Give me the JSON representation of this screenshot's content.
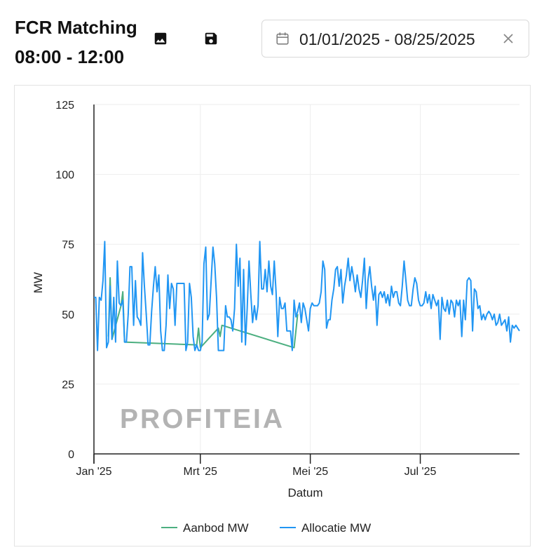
{
  "header": {
    "title_line1": "FCR Matching",
    "title_line2": "08:00 - 12:00",
    "image_icon": "image-icon",
    "save_icon": "save-icon"
  },
  "date_range": {
    "icon": "calendar-icon",
    "value": "01/01/2025 - 08/25/2025",
    "clear_icon": "close-icon"
  },
  "watermark": "PROFITEIA",
  "colors": {
    "aanbod": "#4caf80",
    "allocatie": "#2196f3",
    "grid": "#eeeeee",
    "axis": "#222222",
    "watermark": "#b3b3b3"
  },
  "chart_data": {
    "type": "line",
    "title": "",
    "xlabel": "Datum",
    "ylabel": "MW",
    "ylim": [
      0,
      125
    ],
    "yticks": [
      0,
      25,
      50,
      75,
      100,
      125
    ],
    "xlim": [
      "2025-01-01",
      "2025-08-25"
    ],
    "xticks": [
      {
        "date": "2025-01-01",
        "label": "Jan '25"
      },
      {
        "date": "2025-03-01",
        "label": "Mrt '25"
      },
      {
        "date": "2025-05-01",
        "label": "Mei '25"
      },
      {
        "date": "2025-07-01",
        "label": "Jul '25"
      }
    ],
    "grid": true,
    "legend": "bottom",
    "series": [
      {
        "name": "Aanbod MW",
        "points": [
          [
            "2025-01-09",
            42
          ],
          [
            "2025-01-10",
            63
          ],
          [
            "2025-01-11",
            41
          ],
          [
            "2025-01-16",
            53
          ],
          [
            "2025-01-17",
            58
          ],
          [
            "2025-01-18",
            40
          ],
          [
            "2025-02-27",
            39
          ],
          [
            "2025-02-28",
            45
          ],
          [
            "2025-03-01",
            38
          ],
          [
            "2025-03-11",
            45
          ],
          [
            "2025-03-12",
            42
          ],
          [
            "2025-03-13",
            46
          ],
          [
            "2025-04-22",
            38
          ],
          [
            "2025-04-23",
            44
          ],
          [
            "2025-04-24",
            50
          ]
        ]
      },
      {
        "name": "Allocatie MW",
        "points": [
          [
            "2025-01-01",
            56
          ],
          [
            "2025-01-02",
            56
          ],
          [
            "2025-01-03",
            37
          ],
          [
            "2025-01-04",
            56
          ],
          [
            "2025-01-05",
            55
          ],
          [
            "2025-01-06",
            62
          ],
          [
            "2025-01-07",
            76
          ],
          [
            "2025-01-08",
            38
          ],
          [
            "2025-01-09",
            40
          ],
          [
            "2025-01-10",
            60
          ],
          [
            "2025-01-11",
            41
          ],
          [
            "2025-01-12",
            56
          ],
          [
            "2025-01-13",
            40
          ],
          [
            "2025-01-14",
            69
          ],
          [
            "2025-01-15",
            54
          ],
          [
            "2025-01-16",
            53
          ],
          [
            "2025-01-17",
            55
          ],
          [
            "2025-01-18",
            40
          ],
          [
            "2025-01-19",
            40
          ],
          [
            "2025-01-20",
            50
          ],
          [
            "2025-01-21",
            67
          ],
          [
            "2025-01-22",
            67
          ],
          [
            "2025-01-23",
            46
          ],
          [
            "2025-01-24",
            62
          ],
          [
            "2025-01-25",
            49
          ],
          [
            "2025-01-26",
            48
          ],
          [
            "2025-01-27",
            46
          ],
          [
            "2025-01-28",
            72
          ],
          [
            "2025-01-29",
            60
          ],
          [
            "2025-01-30",
            50
          ],
          [
            "2025-01-31",
            39
          ],
          [
            "2025-02-01",
            39
          ],
          [
            "2025-02-02",
            51
          ],
          [
            "2025-02-03",
            60
          ],
          [
            "2025-02-04",
            67
          ],
          [
            "2025-02-05",
            58
          ],
          [
            "2025-02-06",
            64
          ],
          [
            "2025-02-07",
            44
          ],
          [
            "2025-02-08",
            37
          ],
          [
            "2025-02-09",
            37
          ],
          [
            "2025-02-10",
            46
          ],
          [
            "2025-02-11",
            64
          ],
          [
            "2025-02-12",
            52
          ],
          [
            "2025-02-13",
            61
          ],
          [
            "2025-02-14",
            59
          ],
          [
            "2025-02-15",
            46
          ],
          [
            "2025-02-16",
            61
          ],
          [
            "2025-02-17",
            61
          ],
          [
            "2025-02-18",
            61
          ],
          [
            "2025-02-19",
            61
          ],
          [
            "2025-02-20",
            61
          ],
          [
            "2025-02-21",
            37
          ],
          [
            "2025-02-22",
            40
          ],
          [
            "2025-02-23",
            61
          ],
          [
            "2025-02-24",
            56
          ],
          [
            "2025-02-25",
            42
          ],
          [
            "2025-02-26",
            37
          ],
          [
            "2025-02-27",
            39
          ],
          [
            "2025-02-28",
            37
          ],
          [
            "2025-03-01",
            37
          ],
          [
            "2025-03-02",
            40
          ],
          [
            "2025-03-03",
            68
          ],
          [
            "2025-03-04",
            74
          ],
          [
            "2025-03-05",
            48
          ],
          [
            "2025-03-06",
            50
          ],
          [
            "2025-03-07",
            62
          ],
          [
            "2025-03-08",
            74
          ],
          [
            "2025-03-09",
            68
          ],
          [
            "2025-03-10",
            56
          ],
          [
            "2025-03-11",
            37
          ],
          [
            "2025-03-12",
            37
          ],
          [
            "2025-03-13",
            37
          ],
          [
            "2025-03-14",
            37
          ],
          [
            "2025-03-15",
            53
          ],
          [
            "2025-03-16",
            49
          ],
          [
            "2025-03-17",
            49
          ],
          [
            "2025-03-18",
            48
          ],
          [
            "2025-03-19",
            44
          ],
          [
            "2025-03-20",
            52
          ],
          [
            "2025-03-21",
            75
          ],
          [
            "2025-03-22",
            60
          ],
          [
            "2025-03-23",
            70
          ],
          [
            "2025-03-24",
            40
          ],
          [
            "2025-03-25",
            66
          ],
          [
            "2025-03-26",
            39
          ],
          [
            "2025-03-27",
            52
          ],
          [
            "2025-03-28",
            69
          ],
          [
            "2025-03-29",
            57
          ],
          [
            "2025-03-30",
            47
          ],
          [
            "2025-03-31",
            53
          ],
          [
            "2025-04-01",
            48
          ],
          [
            "2025-04-02",
            53
          ],
          [
            "2025-04-03",
            76
          ],
          [
            "2025-04-04",
            59
          ],
          [
            "2025-04-05",
            59
          ],
          [
            "2025-04-06",
            66
          ],
          [
            "2025-04-07",
            58
          ],
          [
            "2025-04-08",
            69
          ],
          [
            "2025-04-09",
            60
          ],
          [
            "2025-04-10",
            57
          ],
          [
            "2025-04-11",
            69
          ],
          [
            "2025-04-12",
            58
          ],
          [
            "2025-04-13",
            42
          ],
          [
            "2025-04-14",
            56
          ],
          [
            "2025-04-15",
            52
          ],
          [
            "2025-04-16",
            52
          ],
          [
            "2025-04-17",
            54
          ],
          [
            "2025-04-18",
            44
          ],
          [
            "2025-04-19",
            44
          ],
          [
            "2025-04-20",
            44
          ],
          [
            "2025-04-21",
            37
          ],
          [
            "2025-04-22",
            55
          ],
          [
            "2025-04-23",
            49
          ],
          [
            "2025-04-24",
            51
          ],
          [
            "2025-04-25",
            54
          ],
          [
            "2025-04-26",
            47
          ],
          [
            "2025-04-27",
            54
          ],
          [
            "2025-04-28",
            52
          ],
          [
            "2025-04-29",
            48
          ],
          [
            "2025-04-30",
            44
          ],
          [
            "2025-05-01",
            52
          ],
          [
            "2025-05-02",
            54
          ],
          [
            "2025-05-03",
            53
          ],
          [
            "2025-05-04",
            53
          ],
          [
            "2025-05-05",
            53
          ],
          [
            "2025-05-06",
            54
          ],
          [
            "2025-05-07",
            58
          ],
          [
            "2025-05-08",
            69
          ],
          [
            "2025-05-09",
            66
          ],
          [
            "2025-05-10",
            45
          ],
          [
            "2025-05-11",
            48
          ],
          [
            "2025-05-12",
            48
          ],
          [
            "2025-05-13",
            55
          ],
          [
            "2025-05-14",
            59
          ],
          [
            "2025-05-15",
            66
          ],
          [
            "2025-05-16",
            67
          ],
          [
            "2025-05-17",
            60
          ],
          [
            "2025-05-18",
            66
          ],
          [
            "2025-05-19",
            54
          ],
          [
            "2025-05-20",
            60
          ],
          [
            "2025-05-21",
            64
          ],
          [
            "2025-05-22",
            70
          ],
          [
            "2025-05-23",
            62
          ],
          [
            "2025-05-24",
            67
          ],
          [
            "2025-05-25",
            63
          ],
          [
            "2025-05-26",
            58
          ],
          [
            "2025-05-27",
            64
          ],
          [
            "2025-05-28",
            59
          ],
          [
            "2025-05-29",
            56
          ],
          [
            "2025-05-30",
            62
          ],
          [
            "2025-05-31",
            70
          ],
          [
            "2025-06-01",
            52
          ],
          [
            "2025-06-02",
            62
          ],
          [
            "2025-06-03",
            67
          ],
          [
            "2025-06-04",
            60
          ],
          [
            "2025-06-05",
            55
          ],
          [
            "2025-06-06",
            60
          ],
          [
            "2025-06-07",
            46
          ],
          [
            "2025-06-08",
            57
          ],
          [
            "2025-06-09",
            58
          ],
          [
            "2025-06-10",
            56
          ],
          [
            "2025-06-11",
            58
          ],
          [
            "2025-06-12",
            54
          ],
          [
            "2025-06-13",
            57
          ],
          [
            "2025-06-14",
            53
          ],
          [
            "2025-06-15",
            60
          ],
          [
            "2025-06-16",
            56
          ],
          [
            "2025-06-17",
            58
          ],
          [
            "2025-06-18",
            58
          ],
          [
            "2025-06-19",
            54
          ],
          [
            "2025-06-20",
            53
          ],
          [
            "2025-06-21",
            60
          ],
          [
            "2025-06-22",
            69
          ],
          [
            "2025-06-23",
            62
          ],
          [
            "2025-06-24",
            55
          ],
          [
            "2025-06-25",
            53
          ],
          [
            "2025-06-26",
            53
          ],
          [
            "2025-06-27",
            59
          ],
          [
            "2025-06-28",
            63
          ],
          [
            "2025-06-29",
            61
          ],
          [
            "2025-06-30",
            55
          ],
          [
            "2025-07-01",
            53
          ],
          [
            "2025-07-02",
            53
          ],
          [
            "2025-07-03",
            54
          ],
          [
            "2025-07-04",
            58
          ],
          [
            "2025-07-05",
            54
          ],
          [
            "2025-07-06",
            57
          ],
          [
            "2025-07-07",
            52
          ],
          [
            "2025-07-08",
            57
          ],
          [
            "2025-07-09",
            55
          ],
          [
            "2025-07-10",
            53
          ],
          [
            "2025-07-11",
            55
          ],
          [
            "2025-07-12",
            41
          ],
          [
            "2025-07-13",
            56
          ],
          [
            "2025-07-14",
            52
          ],
          [
            "2025-07-15",
            51
          ],
          [
            "2025-07-16",
            55
          ],
          [
            "2025-07-17",
            50
          ],
          [
            "2025-07-18",
            55
          ],
          [
            "2025-07-19",
            54
          ],
          [
            "2025-07-20",
            49
          ],
          [
            "2025-07-21",
            55
          ],
          [
            "2025-07-22",
            53
          ],
          [
            "2025-07-23",
            55
          ],
          [
            "2025-07-24",
            42
          ],
          [
            "2025-07-25",
            55
          ],
          [
            "2025-07-26",
            48
          ],
          [
            "2025-07-27",
            62
          ],
          [
            "2025-07-28",
            63
          ],
          [
            "2025-07-29",
            62
          ],
          [
            "2025-07-30",
            44
          ],
          [
            "2025-07-31",
            59
          ],
          [
            "2025-08-01",
            58
          ],
          [
            "2025-08-02",
            52
          ],
          [
            "2025-08-03",
            53
          ],
          [
            "2025-08-04",
            48
          ],
          [
            "2025-08-05",
            50
          ],
          [
            "2025-08-06",
            48
          ],
          [
            "2025-08-07",
            50
          ],
          [
            "2025-08-08",
            51
          ],
          [
            "2025-08-09",
            50
          ],
          [
            "2025-08-10",
            48
          ],
          [
            "2025-08-11",
            50
          ],
          [
            "2025-08-12",
            46
          ],
          [
            "2025-08-13",
            47
          ],
          [
            "2025-08-14",
            50
          ],
          [
            "2025-08-15",
            46
          ],
          [
            "2025-08-16",
            47
          ],
          [
            "2025-08-17",
            48
          ],
          [
            "2025-08-18",
            44
          ],
          [
            "2025-08-19",
            49
          ],
          [
            "2025-08-20",
            40
          ],
          [
            "2025-08-21",
            46
          ],
          [
            "2025-08-22",
            45
          ],
          [
            "2025-08-23",
            46
          ],
          [
            "2025-08-24",
            45
          ],
          [
            "2025-08-25",
            44
          ]
        ]
      }
    ]
  }
}
